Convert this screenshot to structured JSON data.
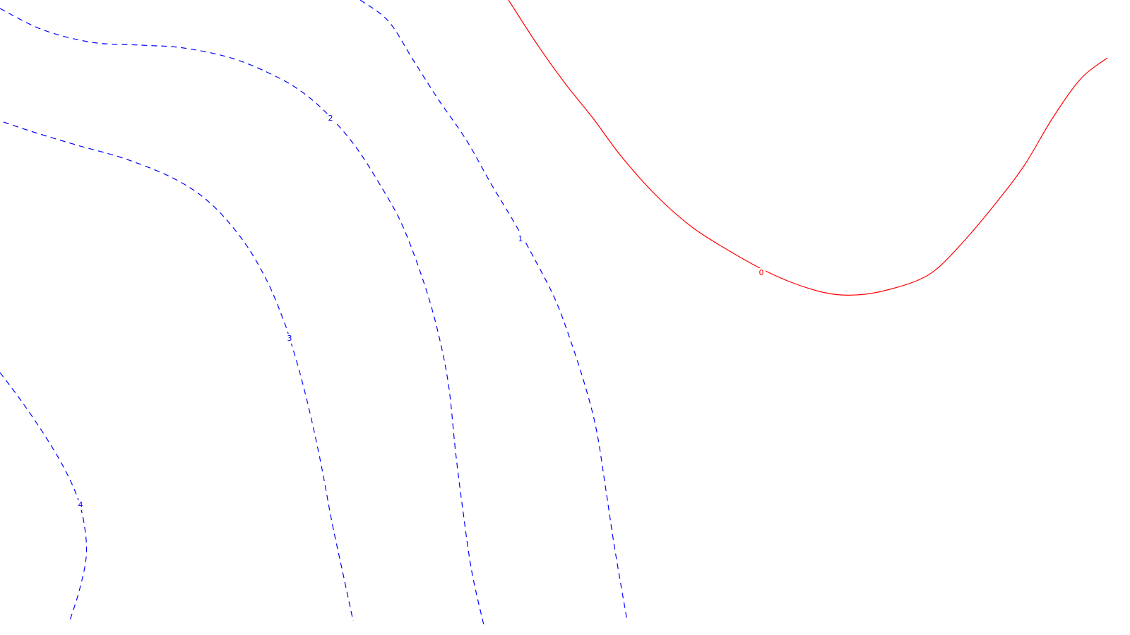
{
  "chart_data": {
    "type": "contour",
    "title": "",
    "xlabel": "",
    "ylabel": "",
    "grid": false,
    "legend": "none",
    "colors": {
      "zero_level": "#ff0000",
      "positive_levels": "#0000ff",
      "background": "#ffffff"
    },
    "levels": [
      {
        "id": "level-0",
        "value": 0,
        "label": "0",
        "color": "#ff0000",
        "linestyle": "solid",
        "points": [
          [
            720,
            0
          ],
          [
            760,
            62
          ],
          [
            800,
            118
          ],
          [
            840,
            168
          ],
          [
            880,
            222
          ],
          [
            930,
            278
          ],
          [
            980,
            322
          ],
          [
            1030,
            354
          ],
          [
            1078,
            381
          ],
          [
            1120,
            400
          ],
          [
            1160,
            413
          ],
          [
            1190,
            418
          ],
          [
            1225,
            417
          ],
          [
            1260,
            410
          ],
          [
            1300,
            397
          ],
          [
            1330,
            378
          ],
          [
            1370,
            336
          ],
          [
            1410,
            288
          ],
          [
            1450,
            235
          ],
          [
            1490,
            168
          ],
          [
            1530,
            112
          ],
          [
            1568,
            82
          ]
        ]
      },
      {
        "id": "level-1",
        "value": 1,
        "label": "1",
        "color": "#0000ff",
        "linestyle": "dashed",
        "points": [
          [
            510,
            0
          ],
          [
            550,
            30
          ],
          [
            585,
            85
          ],
          [
            620,
            140
          ],
          [
            660,
            198
          ],
          [
            695,
            260
          ],
          [
            725,
            310
          ],
          [
            752,
            358
          ],
          [
            785,
            422
          ],
          [
            808,
            483
          ],
          [
            830,
            552
          ],
          [
            845,
            612
          ],
          [
            858,
            695
          ],
          [
            870,
            775
          ],
          [
            888,
            880
          ]
        ]
      },
      {
        "id": "level-2",
        "value": 2,
        "label": "2",
        "color": "#0000ff",
        "linestyle": "dashed",
        "points": [
          [
            0,
            12
          ],
          [
            60,
            42
          ],
          [
            130,
            60
          ],
          [
            200,
            64
          ],
          [
            260,
            68
          ],
          [
            330,
            83
          ],
          [
            390,
            108
          ],
          [
            430,
            132
          ],
          [
            468,
            166
          ],
          [
            505,
            210
          ],
          [
            540,
            265
          ],
          [
            570,
            320
          ],
          [
            600,
            400
          ],
          [
            620,
            470
          ],
          [
            635,
            545
          ],
          [
            645,
            640
          ],
          [
            655,
            720
          ],
          [
            668,
            810
          ],
          [
            686,
            890
          ]
        ]
      },
      {
        "id": "level-3",
        "value": 3,
        "label": "3",
        "color": "#0000ff",
        "linestyle": "dashed",
        "points": [
          [
            5,
            173
          ],
          [
            50,
            188
          ],
          [
            110,
            206
          ],
          [
            180,
            226
          ],
          [
            250,
            255
          ],
          [
            300,
            290
          ],
          [
            345,
            342
          ],
          [
            378,
            398
          ],
          [
            400,
            450
          ],
          [
            410,
            479
          ],
          [
            425,
            530
          ],
          [
            440,
            590
          ],
          [
            455,
            660
          ],
          [
            470,
            740
          ],
          [
            485,
            810
          ],
          [
            500,
            880
          ]
        ]
      },
      {
        "id": "level-4",
        "value": 4,
        "label": "4",
        "color": "#0000ff",
        "linestyle": "dashed",
        "points": [
          [
            0,
            528
          ],
          [
            30,
            568
          ],
          [
            62,
            615
          ],
          [
            90,
            662
          ],
          [
            110,
            706
          ],
          [
            120,
            748
          ],
          [
            122,
            790
          ],
          [
            112,
            838
          ],
          [
            98,
            882
          ]
        ]
      }
    ],
    "labels": [
      {
        "text": "0",
        "level": 0,
        "at": [
          1078,
          387
        ]
      },
      {
        "text": "1",
        "level": 1,
        "at": [
          737,
          339
        ]
      },
      {
        "text": "2",
        "level": 2,
        "at": [
          468,
          168
        ]
      },
      {
        "text": "3",
        "level": 3,
        "at": [
          410,
          480
        ]
      },
      {
        "text": "4",
        "level": 4,
        "at": [
          114,
          716
        ]
      }
    ]
  }
}
